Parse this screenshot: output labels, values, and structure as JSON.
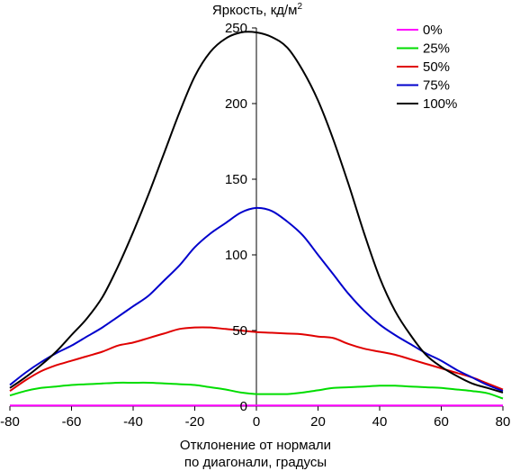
{
  "chart_data": {
    "type": "line",
    "y_title": "Яркость, кд/м",
    "y_title_sup": "2",
    "xlabel_line1": "Отклонение от нормали",
    "xlabel_line2": "по диагонали, градусы",
    "xlim": [
      -80,
      80
    ],
    "ylim": [
      0,
      250
    ],
    "x_ticks": [
      "-80",
      "-60",
      "-40",
      "-20",
      "0",
      "20",
      "40",
      "60",
      "80"
    ],
    "y_ticks": [
      "0",
      "50",
      "100",
      "150",
      "200",
      "250"
    ],
    "grid": false,
    "legend_position": "top-right",
    "x": [
      -80,
      -75,
      -70,
      -65,
      -60,
      -55,
      -50,
      -45,
      -40,
      -35,
      -30,
      -25,
      -20,
      -15,
      -10,
      -5,
      0,
      5,
      10,
      15,
      20,
      25,
      30,
      35,
      40,
      45,
      50,
      55,
      60,
      65,
      70,
      75,
      80
    ],
    "series": [
      {
        "name": "0%",
        "color": "#ff00ff",
        "values": [
          0.5,
          0.5,
          0.5,
          0.5,
          0.5,
          0.5,
          0.5,
          0.5,
          0.5,
          0.5,
          0.5,
          0.5,
          0.5,
          0.5,
          0.5,
          0.5,
          0.5,
          0.5,
          0.5,
          0.5,
          0.5,
          0.5,
          0.5,
          0.5,
          0.5,
          0.5,
          0.5,
          0.5,
          0.5,
          0.5,
          0.5,
          0.5,
          0.5
        ]
      },
      {
        "name": "25%",
        "color": "#00dd00",
        "values": [
          7,
          10,
          12,
          13,
          14,
          14.5,
          15,
          15.5,
          15.5,
          15.5,
          15,
          14.5,
          14,
          12.5,
          11,
          9,
          8,
          8,
          8,
          9,
          10.5,
          12,
          12.5,
          13,
          13.5,
          13.5,
          13,
          12.5,
          12,
          11,
          10,
          8.5,
          5
        ]
      },
      {
        "name": "50%",
        "color": "#e00000",
        "values": [
          10,
          17,
          23,
          27,
          30,
          33,
          36,
          40,
          42,
          45,
          48,
          51,
          52,
          52,
          51,
          50,
          49,
          48.5,
          48,
          47.5,
          46,
          45,
          41,
          38,
          36,
          34,
          31,
          28,
          25,
          22,
          19,
          15,
          11
        ]
      },
      {
        "name": "75%",
        "color": "#0000cc",
        "values": [
          14,
          22,
          29,
          35,
          40,
          46,
          52,
          59,
          66,
          73,
          83,
          93,
          105,
          114,
          121,
          128,
          131,
          129,
          122,
          113,
          100,
          87,
          74,
          63,
          54,
          47,
          41,
          35,
          30,
          24,
          19,
          14,
          10
        ]
      },
      {
        "name": "100%",
        "color": "#000000",
        "values": [
          12,
          19,
          27,
          36,
          47,
          58,
          72,
          92,
          115,
          140,
          167,
          194,
          218,
          234,
          243,
          247,
          247,
          244,
          237,
          222,
          202,
          176,
          146,
          114,
          85,
          63,
          47,
          34,
          26,
          20,
          15,
          12,
          9
        ]
      }
    ]
  }
}
